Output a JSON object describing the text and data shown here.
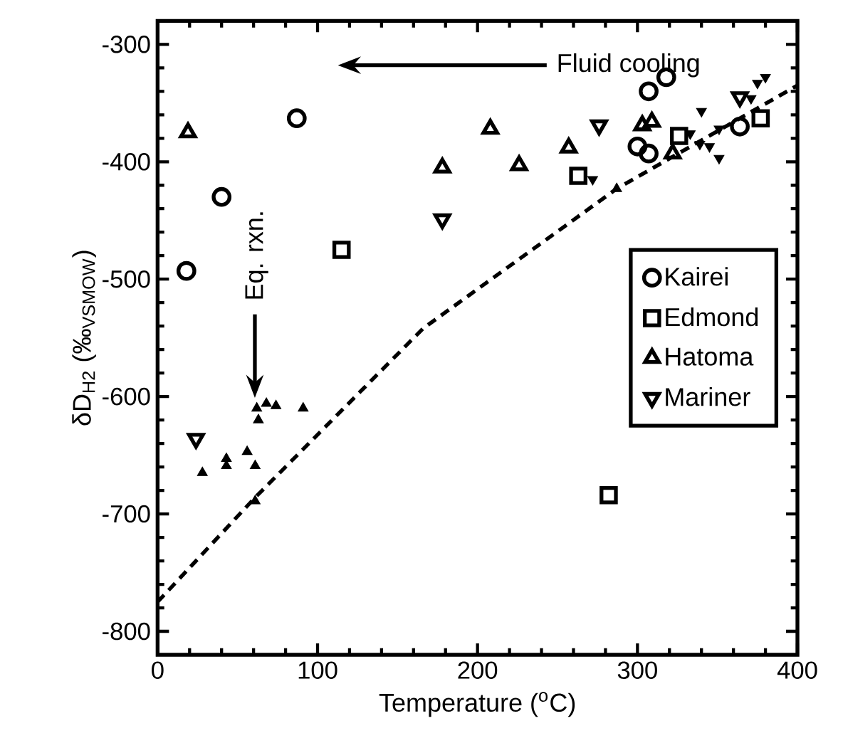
{
  "chart_data": {
    "type": "scatter",
    "xlabel": "Temperature ($^{o}$C)",
    "ylabel": "δD$_{H2}$ (‰$_{VSMOW}$)",
    "xlim": [
      0,
      400
    ],
    "xticks": [
      0,
      100,
      200,
      300,
      400
    ],
    "ylim": [
      -820,
      -280
    ],
    "yticks": [
      -800,
      -700,
      -600,
      -500,
      -400,
      -300
    ],
    "legend": "right",
    "grid": false,
    "annotations": [
      "Fluid cooling",
      "Eq. rxn."
    ],
    "series": [
      {
        "name": "Kairei",
        "color": "#000000",
        "marker": "circle",
        "x": [
          18,
          40,
          87,
          300,
          307,
          307,
          318,
          364
        ],
        "values": [
          -493,
          -430,
          -363,
          -387,
          -393,
          -340,
          -328,
          -370
        ]
      },
      {
        "name": "Edmond",
        "color": "#000000",
        "marker": "square",
        "x": [
          115,
          263,
          282,
          326,
          377
        ],
        "values": [
          -475,
          -412,
          -684,
          -378,
          -363
        ]
      },
      {
        "name": "Hatoma",
        "color": "#000000",
        "marker": "triangle",
        "x": [
          19,
          178,
          208,
          226,
          257,
          303,
          309,
          322
        ],
        "values": [
          -375,
          -405,
          -372,
          -403,
          -388,
          -369,
          -366,
          -393
        ]
      },
      {
        "name": "Mariner",
        "color": "#000000",
        "marker": "triangle-down",
        "x": [
          24,
          178,
          276,
          364
        ],
        "values": [
          -636,
          -449,
          -369,
          -345
        ]
      },
      {
        "color": "#000000",
        "marker": "triangle",
        "x": [
          28,
          43,
          43,
          56,
          61,
          61,
          62,
          63,
          68,
          74,
          91,
          287
        ],
        "values": [
          -665,
          -653,
          -659,
          -647,
          -659,
          -689,
          -610,
          -620,
          -606,
          -608,
          -610,
          -423
        ]
      },
      {
        "color": "#000000",
        "marker": "triangle-down",
        "x": [
          272,
          333,
          339,
          340,
          345,
          351,
          351,
          371,
          375,
          380
        ],
        "values": [
          -415,
          -376,
          -385,
          -357,
          -387,
          -397,
          -372,
          -346,
          -333,
          -328
        ]
      },
      {
        "type": "line",
        "color": "#000000",
        "line_style": "dashed",
        "marker": "none",
        "x": [
          0,
          61,
          166,
          287,
          400
        ],
        "values": [
          -775,
          -686,
          -542,
          -423,
          -335
        ]
      }
    ]
  }
}
